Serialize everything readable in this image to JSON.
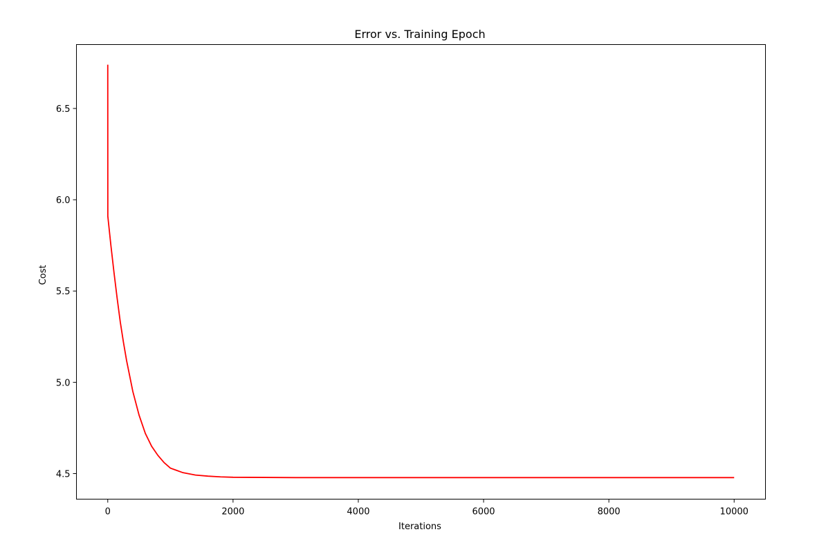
{
  "chart_data": {
    "type": "line",
    "title": "Error vs. Training Epoch",
    "xlabel": "Iterations",
    "ylabel": "Cost",
    "xlim": [
      -500,
      10500
    ],
    "ylim": [
      4.36,
      6.85
    ],
    "xticks": [
      0,
      2000,
      4000,
      6000,
      8000,
      10000
    ],
    "xtick_labels": [
      "0",
      "2000",
      "4000",
      "6000",
      "8000",
      "10000"
    ],
    "yticks": [
      4.5,
      5.0,
      5.5,
      6.0,
      6.5
    ],
    "ytick_labels": [
      "4.5",
      "5.0",
      "5.5",
      "6.0",
      "6.5"
    ],
    "grid": false,
    "series": [
      {
        "color": "#ff0000",
        "x": [
          0,
          1,
          10,
          50,
          100,
          150,
          200,
          250,
          300,
          400,
          500,
          600,
          700,
          800,
          900,
          1000,
          1200,
          1400,
          1600,
          1800,
          2000,
          2500,
          3000,
          4000,
          5000,
          6000,
          7000,
          8000,
          9000,
          10000
        ],
        "y": [
          6.74,
          5.91,
          5.88,
          5.75,
          5.6,
          5.46,
          5.33,
          5.22,
          5.12,
          4.95,
          4.82,
          4.72,
          4.65,
          4.6,
          4.56,
          4.53,
          4.505,
          4.492,
          4.486,
          4.482,
          4.48,
          4.479,
          4.478,
          4.478,
          4.478,
          4.478,
          4.478,
          4.478,
          4.478,
          4.478
        ]
      }
    ]
  }
}
